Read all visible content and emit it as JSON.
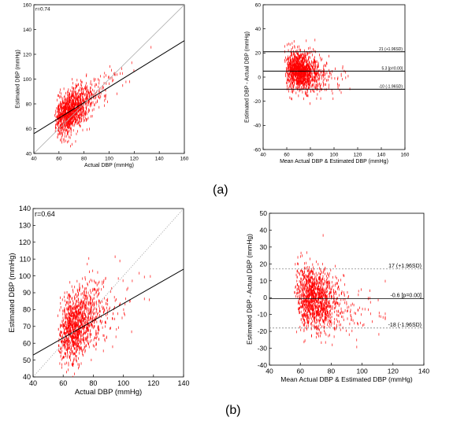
{
  "panel_labels": {
    "a": "(a)",
    "b": "(b)"
  },
  "colors": {
    "points": "#ff0000",
    "fit_line": "#000000",
    "identity_line": "#b0b0b0",
    "sd_line_b": "#888888"
  },
  "chart_data": [
    {
      "id": "a-scatter",
      "type": "scatter",
      "title": "",
      "xlabel": "Actual DBP (mmHg)",
      "ylabel": "Estimated DBP (mmHg)",
      "annotation": "r=0.74",
      "xlim": [
        40,
        160
      ],
      "ylim": [
        40,
        160
      ],
      "xticks": [
        40,
        60,
        80,
        100,
        120,
        140,
        160
      ],
      "yticks": [
        40,
        60,
        80,
        100,
        120,
        140,
        160
      ],
      "cloud": {
        "x_range": [
          50,
          140
        ],
        "center_x": 68,
        "center_y": 73,
        "slope": 0.62,
        "spread": 8
      },
      "lines": [
        {
          "name": "",
          "kind": "fit",
          "x": [
            40,
            160
          ],
          "y": [
            56,
            131
          ]
        },
        {
          "name": "",
          "kind": "identity",
          "x": [
            40,
            160
          ],
          "y": [
            40,
            160
          ]
        }
      ]
    },
    {
      "id": "a-bland-altman",
      "type": "scatter",
      "title": "",
      "xlabel": "Mean Actual DBP & Estimated DBP (mmHg)",
      "ylabel": "Estimated DBP - Actual DBP (mmHg)",
      "xlim": [
        40,
        160
      ],
      "ylim": [
        -60,
        60
      ],
      "xticks": [
        40,
        60,
        80,
        100,
        120,
        140,
        160
      ],
      "yticks": [
        -60,
        -40,
        -20,
        0,
        20,
        40,
        60
      ],
      "cloud": {
        "x_range": [
          52,
          115
        ],
        "center_x": 70,
        "center_y": 5,
        "slope": -0.2,
        "spread": 8
      },
      "hlines": [
        {
          "y": 21,
          "label": "21 (+1.96SD)"
        },
        {
          "y": 5,
          "label": "5.3 [p=0.00]"
        },
        {
          "y": -10,
          "label": "-10 (-1.96SD)"
        }
      ]
    },
    {
      "id": "b-scatter",
      "type": "scatter",
      "title": "",
      "xlabel": "Actual DBP (mmHg)",
      "ylabel": "Estimated DBP (mmHg)",
      "annotation": "r=0.64",
      "xlim": [
        40,
        140
      ],
      "ylim": [
        40,
        140
      ],
      "xticks": [
        40,
        60,
        80,
        100,
        120,
        140
      ],
      "yticks": [
        40,
        50,
        60,
        70,
        80,
        90,
        100,
        110,
        120,
        130,
        140
      ],
      "cloud": {
        "x_range": [
          50,
          140
        ],
        "center_x": 68,
        "center_y": 70,
        "slope": 0.5,
        "spread": 10
      },
      "lines": [
        {
          "name": "",
          "kind": "fit",
          "x": [
            40,
            140
          ],
          "y": [
            53,
            104
          ]
        },
        {
          "name": "",
          "kind": "identity",
          "x": [
            40,
            140
          ],
          "y": [
            40,
            140
          ]
        }
      ]
    },
    {
      "id": "b-bland-altman",
      "type": "scatter",
      "title": "",
      "xlabel": "Mean Actual DBP & Estimated DBP (mmHg)",
      "ylabel": "Estimated DBP - Actual DBP (mmHg)",
      "xlim": [
        40,
        140
      ],
      "ylim": [
        -40,
        50
      ],
      "xticks": [
        40,
        60,
        80,
        100,
        120,
        140
      ],
      "yticks": [
        -40,
        -30,
        -20,
        -10,
        0,
        10,
        20,
        30,
        40,
        50
      ],
      "cloud": {
        "x_range": [
          50,
          115
        ],
        "center_x": 68,
        "center_y": 0,
        "slope": -0.25,
        "spread": 9
      },
      "hlines": [
        {
          "y": 17,
          "label": "17 (+1.96SD)"
        },
        {
          "y": -0.6,
          "label": "-0.6 [p=0.00]"
        },
        {
          "y": -18,
          "label": "-18 (-1.96SD)"
        }
      ]
    }
  ]
}
